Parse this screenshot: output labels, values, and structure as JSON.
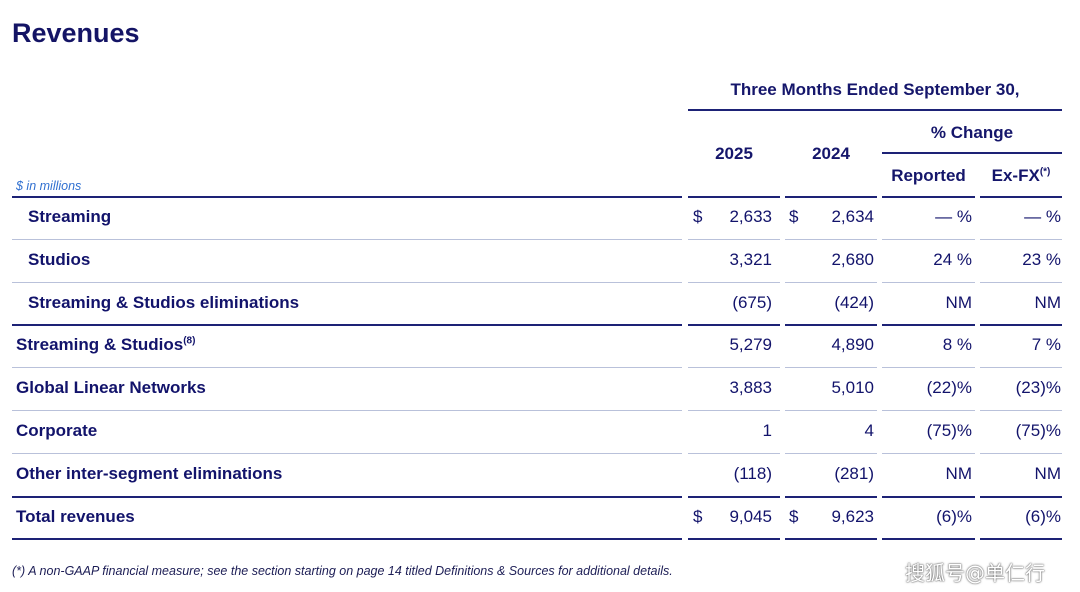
{
  "header": {
    "title": "Revenues",
    "units": "$ in millions"
  },
  "table": {
    "period": "Three Months Ended September 30,",
    "columns": [
      "2025",
      "2024"
    ],
    "change_header": "% Change",
    "change_columns": [
      {
        "label": "Reported"
      },
      {
        "label": "Ex-FX",
        "note": "(*)"
      }
    ],
    "rows": [
      {
        "label": "Streaming",
        "currency": "$",
        "values": [
          "2,633",
          "2,634"
        ],
        "change": [
          "— %",
          "— %"
        ]
      },
      {
        "label": "Studios",
        "values": [
          "3,321",
          "2,680"
        ],
        "change": [
          "24 %",
          "23 %"
        ]
      },
      {
        "label": "Streaming & Studios eliminations",
        "values": [
          "(675)",
          "(424)"
        ],
        "change": [
          "NM",
          "NM"
        ]
      },
      {
        "label": "Streaming & Studios",
        "note": "(8)",
        "values": [
          "5,279",
          "4,890"
        ],
        "change": [
          "8 %",
          "7 %"
        ]
      },
      {
        "label": "Global Linear Networks",
        "values": [
          "3,883",
          "5,010"
        ],
        "change": [
          "(22)%",
          "(23)%"
        ]
      },
      {
        "label": "Corporate",
        "values": [
          "1",
          "4"
        ],
        "change": [
          "(75)%",
          "(75)%"
        ]
      },
      {
        "label": "Other inter-segment eliminations",
        "values": [
          "(118)",
          "(281)"
        ],
        "change": [
          "NM",
          "NM"
        ]
      },
      {
        "label": "Total revenues",
        "currency": "$",
        "values": [
          "9,045",
          "9,623"
        ],
        "change": [
          "(6)%",
          "(6)%"
        ]
      }
    ]
  },
  "footnote": "(*) A non-GAAP financial measure; see the section starting on page 14 titled Definitions & Sources for additional details.",
  "watermark": "搜狐号@单仁行"
}
